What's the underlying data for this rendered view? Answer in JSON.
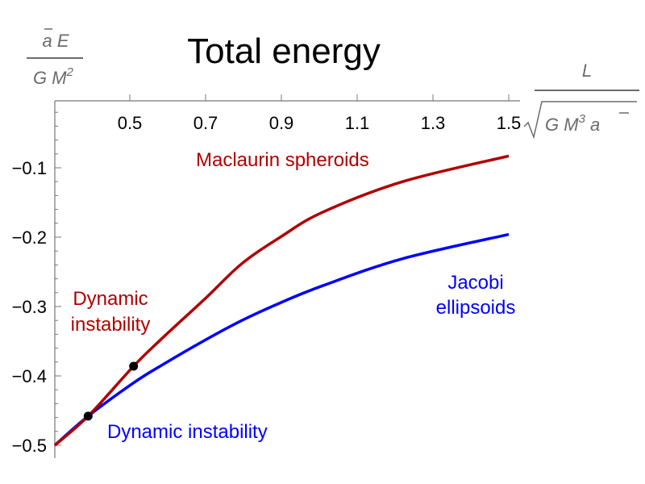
{
  "chart_data": {
    "type": "line",
    "title": "Total energy",
    "xlabel": {
      "numerator": "L",
      "denominator": "G M3 ā",
      "denominator_parts": [
        "G",
        "M",
        "3",
        "a"
      ]
    },
    "ylabel": {
      "numerator": "ā E",
      "denominator": "G M2",
      "numerator_parts": [
        "a",
        "E"
      ],
      "denominator_parts": [
        "G",
        "M",
        "2"
      ]
    },
    "xlim": [
      0.3,
      1.5
    ],
    "ylim": [
      -0.5,
      0
    ],
    "x_axis_position": "top",
    "grid": false,
    "xticks": [
      "0.5",
      "0.7",
      "0.9",
      "1.1",
      "1.3",
      "1.5"
    ],
    "xtick_values": [
      0.5,
      0.7,
      0.9,
      1.1,
      1.3,
      1.5
    ],
    "yticks": [
      "−0.1",
      "−0.2",
      "−0.3",
      "−0.4",
      "−0.5"
    ],
    "ytick_values": [
      -0.1,
      -0.2,
      -0.3,
      -0.4,
      -0.5
    ],
    "series": [
      {
        "name": "Maclaurin spheroids",
        "color": "#b00000",
        "x": [
          0.302,
          0.39,
          0.51,
          0.583,
          0.7,
          0.796,
          0.9,
          1.009,
          1.22,
          1.5
        ],
        "y": [
          -0.5,
          -0.458,
          -0.386,
          -0.347,
          -0.288,
          -0.238,
          -0.199,
          -0.164,
          -0.12,
          -0.083
        ]
      },
      {
        "name": "Jacobi ellipsoids",
        "color": "#0000ff",
        "x": [
          0.302,
          0.39,
          0.51,
          0.583,
          0.7,
          0.796,
          0.9,
          1.009,
          1.22,
          1.5
        ],
        "y": [
          -0.5,
          -0.458,
          -0.41,
          -0.385,
          -0.348,
          -0.32,
          -0.294,
          -0.27,
          -0.231,
          -0.196
        ]
      }
    ],
    "points": [
      {
        "x": 0.39,
        "y": -0.458,
        "color": "#000000"
      },
      {
        "x": 0.51,
        "y": -0.386,
        "color": "#000000"
      }
    ],
    "annotations": [
      {
        "text": "Maclaurin spheroids",
        "color": "#b00000"
      },
      {
        "text": [
          "Jacobi",
          "ellipsoids"
        ],
        "color": "#0000ff"
      },
      {
        "text": [
          "Dynamic",
          "instability"
        ],
        "color": "#b00000"
      },
      {
        "text": "Dynamic instability",
        "color": "#0000ff"
      }
    ]
  }
}
